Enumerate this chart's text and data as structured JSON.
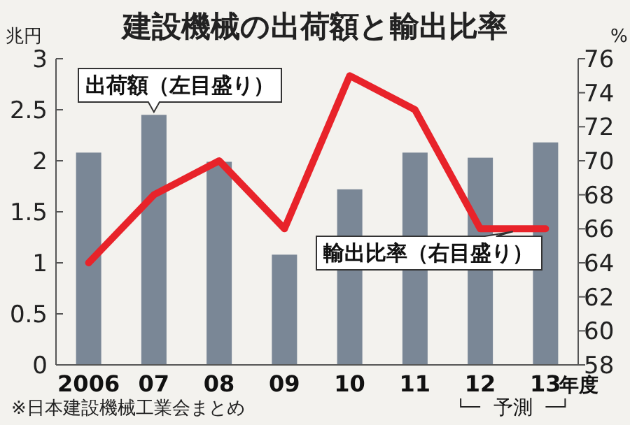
{
  "chart_data": {
    "type": "bar",
    "title": "建設機械の出荷額と輸出比率",
    "categories": [
      "2006",
      "07",
      "08",
      "09",
      "10",
      "11",
      "12",
      "13"
    ],
    "xlabel": "年度",
    "ylabel": "兆円",
    "y2label": "%",
    "series": [
      {
        "name": "出荷額（左目盛り）",
        "color": "#7a8796",
        "values": [
          2.08,
          2.45,
          1.99,
          1.08,
          1.72,
          2.08,
          2.03,
          2.18
        ]
      },
      {
        "name": "輸出比率（右目盛り）",
        "type": "line",
        "axis": "y2",
        "color": "#e8232a",
        "values": [
          64,
          68,
          70,
          66,
          75,
          73,
          66,
          66
        ]
      }
    ],
    "ylim": [
      0,
      3
    ],
    "yticks": [
      0,
      0.5,
      1,
      1.5,
      2,
      2.5,
      3
    ],
    "y2lim": [
      58,
      76
    ],
    "y2ticks": [
      58,
      60,
      62,
      64,
      66,
      68,
      70,
      72,
      74,
      76
    ],
    "grid": false,
    "legend": false,
    "annotations": [
      "予測",
      "※日本建設機械工業会まとめ"
    ]
  }
}
